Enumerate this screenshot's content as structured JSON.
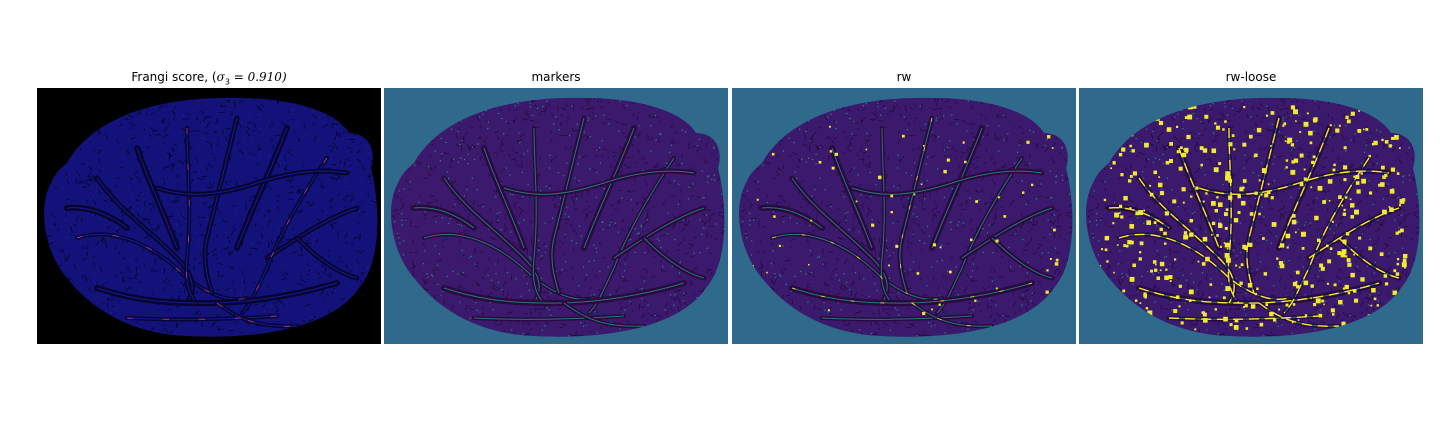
{
  "figure": {
    "panels": [
      {
        "id": "frangi",
        "title_prefix": "Frangi score, (",
        "title_symbol": "σ",
        "title_subscript": "3",
        "title_suffix": " = 0.910)",
        "colors": {
          "background": "#000000",
          "tissue": "#12127a",
          "vessel": "#050530",
          "highlight": "#ff4fa0"
        }
      },
      {
        "id": "markers",
        "title": "markers",
        "colors": {
          "background": "#2f6a8c",
          "tissue": "#3b1a6e",
          "vessel": "#2a0840",
          "label": "#25a88a"
        }
      },
      {
        "id": "rw",
        "title": "rw",
        "colors": {
          "background": "#2f6a8c",
          "tissue": "#3b1a6e",
          "vessel": "#2a0840",
          "label": "#25a88a",
          "bright": "#f0ea30"
        }
      },
      {
        "id": "rw-loose",
        "title": "rw-loose",
        "colors": {
          "background": "#2f6a8c",
          "tissue": "#3b1a6e",
          "vessel": "#2a0840",
          "label": "#25a88a",
          "bright": "#f0ea30"
        }
      }
    ]
  }
}
